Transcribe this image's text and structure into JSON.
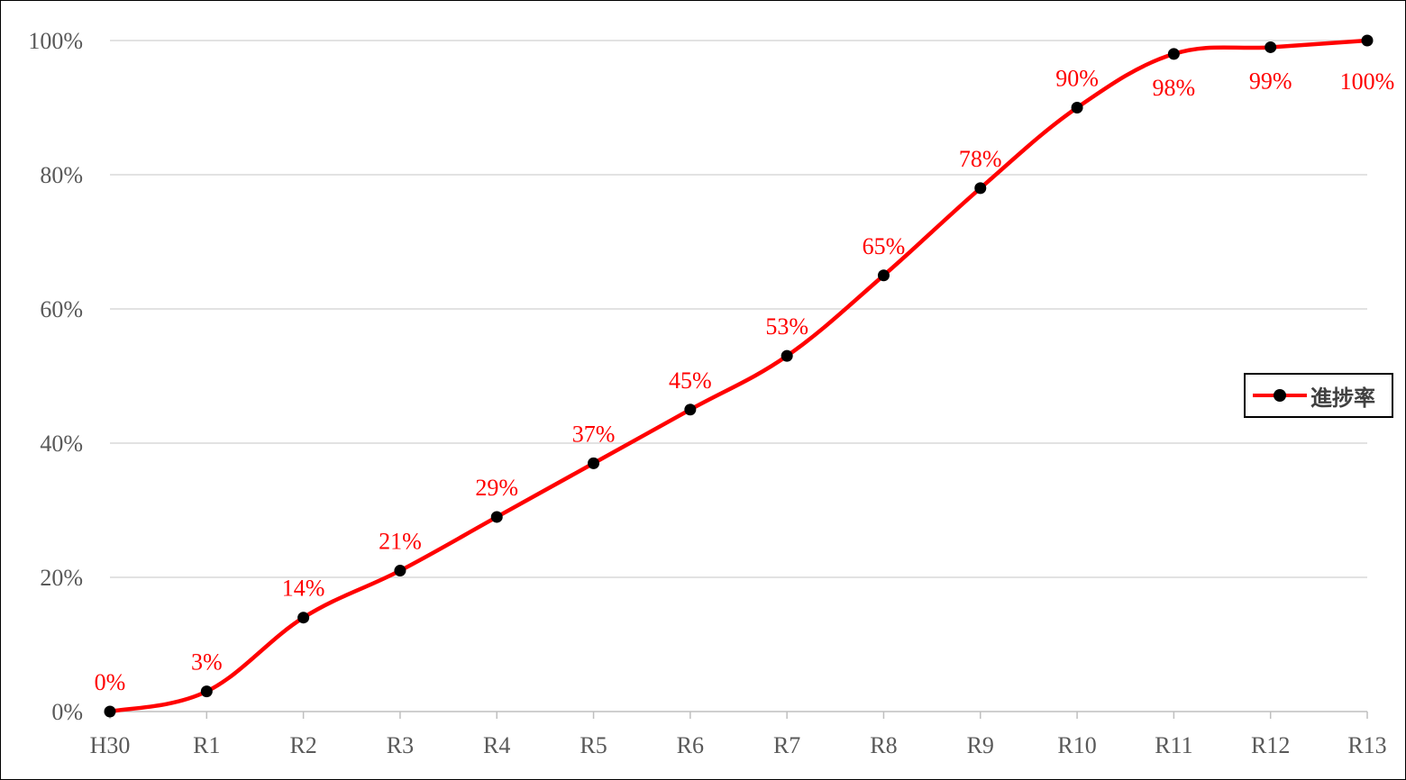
{
  "chart_data": {
    "type": "line",
    "title": "",
    "xlabel": "",
    "ylabel": "",
    "categories": [
      "H30",
      "R1",
      "R2",
      "R3",
      "R4",
      "R5",
      "R6",
      "R7",
      "R8",
      "R9",
      "R10",
      "R11",
      "R12",
      "R13"
    ],
    "series": [
      {
        "name": "進捗率",
        "values": [
          0,
          3,
          14,
          21,
          29,
          37,
          45,
          53,
          65,
          78,
          90,
          98,
          99,
          100
        ],
        "data_labels": [
          "0%",
          "3%",
          "14%",
          "21%",
          "29%",
          "37%",
          "45%",
          "53%",
          "65%",
          "78%",
          "90%",
          "98%",
          "99%",
          "100%"
        ],
        "line_color": "#ff0000",
        "marker_color": "#000000",
        "label_color": "#ff0000"
      }
    ],
    "ylim": [
      0,
      100
    ],
    "y_ticks": [
      0,
      20,
      40,
      60,
      80,
      100
    ],
    "y_tick_labels": [
      "0%",
      "20%",
      "40%",
      "60%",
      "80%",
      "100%"
    ],
    "grid": true,
    "grid_color": "#d9d9d9",
    "legend_position": "right"
  }
}
